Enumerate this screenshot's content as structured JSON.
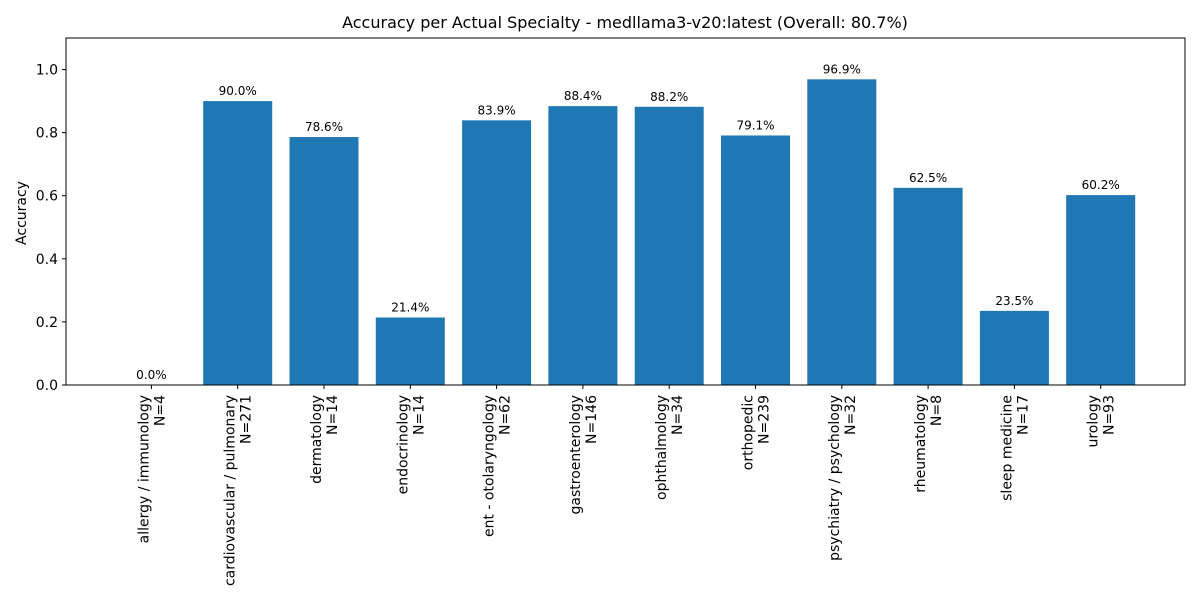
{
  "chart_data": {
    "type": "bar",
    "title": "Accuracy per Actual Specialty - medllama3-v20:latest (Overall: 80.7%)",
    "xlabel": "",
    "ylabel": "Accuracy",
    "ylim": [
      0,
      1.1
    ],
    "yticks": [
      "0.0",
      "0.2",
      "0.4",
      "0.6",
      "0.8",
      "1.0"
    ],
    "grid": false,
    "bar_color": "#1f77b4",
    "categories": [
      {
        "name": "allergy / immunology",
        "n": "N=4"
      },
      {
        "name": "cardiovascular / pulmonary",
        "n": "N=271"
      },
      {
        "name": "dermatology",
        "n": "N=14"
      },
      {
        "name": "endocrinology",
        "n": "N=14"
      },
      {
        "name": "ent - otolaryngology",
        "n": "N=62"
      },
      {
        "name": "gastroenterology",
        "n": "N=146"
      },
      {
        "name": "ophthalmology",
        "n": "N=34"
      },
      {
        "name": "orthopedic",
        "n": "N=239"
      },
      {
        "name": "psychiatry / psychology",
        "n": "N=32"
      },
      {
        "name": "rheumatology",
        "n": "N=8"
      },
      {
        "name": "sleep medicine",
        "n": "N=17"
      },
      {
        "name": "urology",
        "n": "N=93"
      }
    ],
    "values": [
      0.0,
      0.9,
      0.786,
      0.214,
      0.839,
      0.884,
      0.882,
      0.791,
      0.969,
      0.625,
      0.235,
      0.602
    ],
    "value_labels": [
      "0.0%",
      "90.0%",
      "78.6%",
      "21.4%",
      "83.9%",
      "88.4%",
      "88.2%",
      "79.1%",
      "96.9%",
      "62.5%",
      "23.5%",
      "60.2%"
    ]
  }
}
